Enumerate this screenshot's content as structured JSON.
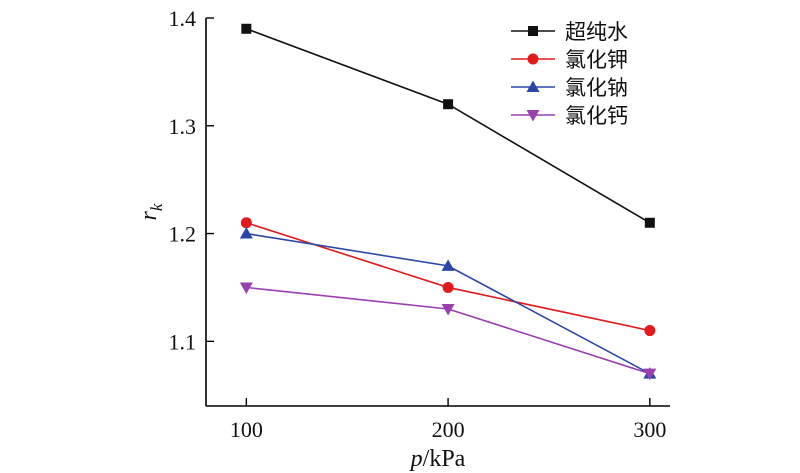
{
  "chart_data": {
    "type": "line",
    "x": [
      100,
      200,
      300
    ],
    "xlabel_var": "p",
    "xlabel_unit": "/kPa",
    "ylabel_var": "r",
    "ylabel_sub": "k",
    "xlim": [
      80,
      310
    ],
    "ylim": [
      1.04,
      1.4
    ],
    "xticks": [
      "100",
      "200",
      "300"
    ],
    "yticks": [
      "1.1",
      "1.2",
      "1.3",
      "1.4"
    ],
    "legend_position": "top-right",
    "grid": false,
    "series": [
      {
        "name": "超纯水",
        "values": [
          1.39,
          1.32,
          1.21
        ],
        "color": "#111111",
        "marker": "square"
      },
      {
        "name": "氯化钾",
        "values": [
          1.21,
          1.15,
          1.11
        ],
        "color": "#e31a1c",
        "marker": "circle"
      },
      {
        "name": "氯化钠",
        "values": [
          1.2,
          1.17,
          1.07
        ],
        "color": "#2a47a8",
        "marker": "triangle-up"
      },
      {
        "name": "氯化钙",
        "values": [
          1.15,
          1.13,
          1.07
        ],
        "color": "#9b3fb0",
        "marker": "triangle-down"
      }
    ]
  }
}
